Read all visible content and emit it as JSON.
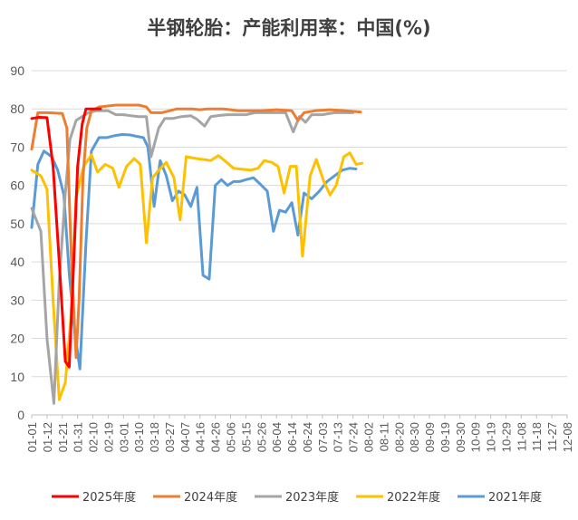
{
  "chart_data": {
    "type": "line",
    "title": "半钢轮胎：产能利用率：中国(%)",
    "ylim": [
      0,
      90
    ],
    "yticks": [
      0,
      10,
      20,
      30,
      40,
      50,
      60,
      70,
      80,
      90
    ],
    "grid": true,
    "legend_position": "bottom",
    "x": [
      "01-01",
      "01-12",
      "01-21",
      "01-31",
      "02-10",
      "02-19",
      "03-01",
      "03-10",
      "03-18",
      "03-27",
      "04-07",
      "04-16",
      "04-26",
      "05-06",
      "05-15",
      "05-26",
      "06-04",
      "06-14",
      "06-24",
      "07-03",
      "07-13",
      "07-24",
      "08-02",
      "08-11",
      "08-20",
      "08-30",
      "09-09",
      "09-19",
      "09-30",
      "10-09",
      "10-19",
      "10-29",
      "11-08",
      "11-18",
      "11-27",
      "12-08"
    ],
    "series": [
      {
        "name": "2025年度",
        "color": "#ff0000",
        "points": [
          [
            0,
            77.5
          ],
          [
            0.5,
            77.8
          ],
          [
            1.0,
            77.7
          ],
          [
            1.4,
            65
          ],
          [
            1.8,
            40
          ],
          [
            2.2,
            14
          ],
          [
            2.45,
            12.5
          ],
          [
            2.75,
            40
          ],
          [
            3.0,
            65
          ],
          [
            3.3,
            76
          ],
          [
            3.55,
            80
          ],
          [
            4.0,
            80
          ],
          [
            4.5,
            80
          ]
        ]
      },
      {
        "name": "2024年度",
        "color": "#ed7d31",
        "points": [
          [
            0,
            69.5
          ],
          [
            0.4,
            79
          ],
          [
            1.0,
            79
          ],
          [
            2.0,
            78.8
          ],
          [
            2.3,
            75
          ],
          [
            2.6,
            40
          ],
          [
            2.9,
            15
          ],
          [
            3.1,
            30
          ],
          [
            3.35,
            62
          ],
          [
            3.6,
            75
          ],
          [
            3.9,
            79.5
          ],
          [
            4.4,
            80.5
          ],
          [
            5.5,
            81
          ],
          [
            6.5,
            81
          ],
          [
            7.0,
            81
          ],
          [
            7.5,
            80.5
          ],
          [
            7.8,
            79
          ],
          [
            8.5,
            79
          ],
          [
            9.0,
            79.5
          ],
          [
            9.5,
            80
          ],
          [
            10.5,
            80
          ],
          [
            11.0,
            79.8
          ],
          [
            11.5,
            80
          ],
          [
            12.5,
            80
          ],
          [
            13.0,
            79.8
          ],
          [
            13.5,
            79.5
          ],
          [
            14.5,
            79.5
          ],
          [
            15.0,
            79.5
          ],
          [
            16.0,
            79.8
          ],
          [
            17.0,
            79.5
          ],
          [
            17.4,
            77
          ],
          [
            17.8,
            79
          ],
          [
            18.5,
            79.5
          ],
          [
            19.5,
            79.8
          ],
          [
            20.5,
            79.5
          ],
          [
            21.5,
            79.2
          ]
        ]
      },
      {
        "name": "2023年度",
        "color": "#a5a5a5",
        "points": [
          [
            0,
            54
          ],
          [
            0.6,
            48
          ],
          [
            1.0,
            20
          ],
          [
            1.45,
            3
          ],
          [
            1.8,
            35
          ],
          [
            2.2,
            58
          ],
          [
            2.5,
            72
          ],
          [
            2.9,
            77
          ],
          [
            3.3,
            78
          ],
          [
            3.7,
            79
          ],
          [
            4.2,
            79.5
          ],
          [
            5.0,
            79.5
          ],
          [
            5.5,
            78.5
          ],
          [
            6.0,
            78.5
          ],
          [
            6.5,
            78.2
          ],
          [
            7.0,
            78
          ],
          [
            7.5,
            78
          ],
          [
            7.8,
            67.5
          ],
          [
            8.3,
            75
          ],
          [
            8.7,
            77.5
          ],
          [
            9.2,
            77.5
          ],
          [
            9.8,
            78
          ],
          [
            10.4,
            78.2
          ],
          [
            10.8,
            77.3
          ],
          [
            11.3,
            75.5
          ],
          [
            11.7,
            78
          ],
          [
            12.3,
            78.3
          ],
          [
            12.8,
            78.5
          ],
          [
            13.5,
            78.5
          ],
          [
            14.0,
            78.5
          ],
          [
            14.6,
            79
          ],
          [
            15.2,
            79
          ],
          [
            16.0,
            79
          ],
          [
            16.6,
            79
          ],
          [
            17.1,
            74
          ],
          [
            17.5,
            78
          ],
          [
            17.9,
            76.5
          ],
          [
            18.3,
            78.5
          ],
          [
            19.0,
            78.5
          ],
          [
            19.8,
            79
          ],
          [
            20.5,
            79
          ],
          [
            21.0,
            79
          ]
        ]
      },
      {
        "name": "2022年度",
        "color": "#ffc000",
        "points": [
          [
            0,
            64
          ],
          [
            0.6,
            62.5
          ],
          [
            1.0,
            59
          ],
          [
            1.4,
            30
          ],
          [
            1.8,
            4
          ],
          [
            2.2,
            8.5
          ],
          [
            2.55,
            25
          ],
          [
            2.9,
            57
          ],
          [
            3.4,
            65
          ],
          [
            3.9,
            68
          ],
          [
            4.3,
            63.5
          ],
          [
            4.8,
            65.5
          ],
          [
            5.3,
            64.5
          ],
          [
            5.7,
            59.5
          ],
          [
            6.2,
            65
          ],
          [
            6.7,
            67
          ],
          [
            7.1,
            65.5
          ],
          [
            7.5,
            45
          ],
          [
            7.9,
            62
          ],
          [
            8.3,
            64
          ],
          [
            8.8,
            66
          ],
          [
            9.3,
            62
          ],
          [
            9.7,
            51
          ],
          [
            10.1,
            67.5
          ],
          [
            10.8,
            67
          ],
          [
            11.2,
            66.8
          ],
          [
            11.7,
            66.5
          ],
          [
            12.2,
            67.8
          ],
          [
            12.6,
            66.5
          ],
          [
            13.2,
            64.5
          ],
          [
            13.8,
            64.2
          ],
          [
            14.3,
            64
          ],
          [
            14.8,
            64.5
          ],
          [
            15.2,
            66.5
          ],
          [
            15.7,
            66
          ],
          [
            16.1,
            65
          ],
          [
            16.5,
            58
          ],
          [
            16.9,
            65
          ],
          [
            17.3,
            65
          ],
          [
            17.7,
            41.5
          ],
          [
            18.2,
            62.5
          ],
          [
            18.6,
            66.8
          ],
          [
            19.1,
            61
          ],
          [
            19.5,
            57.5
          ],
          [
            19.9,
            60
          ],
          [
            20.4,
            67.5
          ],
          [
            20.8,
            68.5
          ],
          [
            21.2,
            65.5
          ],
          [
            21.6,
            65.8
          ]
        ]
      },
      {
        "name": "2021年度",
        "color": "#5b9bd5",
        "points": [
          [
            0,
            49
          ],
          [
            0.4,
            65.5
          ],
          [
            0.8,
            69
          ],
          [
            1.3,
            67.5
          ],
          [
            1.7,
            64
          ],
          [
            2.1,
            57.5
          ],
          [
            2.45,
            37
          ],
          [
            2.8,
            22
          ],
          [
            3.15,
            12
          ],
          [
            3.55,
            45
          ],
          [
            3.9,
            69
          ],
          [
            4.4,
            72.5
          ],
          [
            4.9,
            72.5
          ],
          [
            5.4,
            73
          ],
          [
            5.9,
            73.3
          ],
          [
            6.4,
            73.2
          ],
          [
            6.9,
            72.8
          ],
          [
            7.3,
            72.5
          ],
          [
            7.6,
            70
          ],
          [
            8.0,
            54.5
          ],
          [
            8.4,
            66.5
          ],
          [
            8.8,
            62.5
          ],
          [
            9.2,
            56
          ],
          [
            9.6,
            58.5
          ],
          [
            10.0,
            57.5
          ],
          [
            10.4,
            54.5
          ],
          [
            10.8,
            59.5
          ],
          [
            11.2,
            36.5
          ],
          [
            11.6,
            35.5
          ],
          [
            12.0,
            60
          ],
          [
            12.4,
            61.5
          ],
          [
            12.8,
            60
          ],
          [
            13.2,
            61
          ],
          [
            13.6,
            61
          ],
          [
            14.0,
            61.5
          ],
          [
            14.5,
            62
          ],
          [
            14.9,
            60.5
          ],
          [
            15.4,
            58.5
          ],
          [
            15.8,
            48
          ],
          [
            16.2,
            53.5
          ],
          [
            16.6,
            53
          ],
          [
            17.0,
            55.5
          ],
          [
            17.4,
            47
          ],
          [
            17.8,
            58
          ],
          [
            18.3,
            56.5
          ],
          [
            18.8,
            58.5
          ],
          [
            19.3,
            61
          ],
          [
            19.8,
            62.5
          ],
          [
            20.3,
            64
          ],
          [
            20.8,
            64.5
          ],
          [
            21.2,
            64.3
          ]
        ]
      }
    ]
  }
}
